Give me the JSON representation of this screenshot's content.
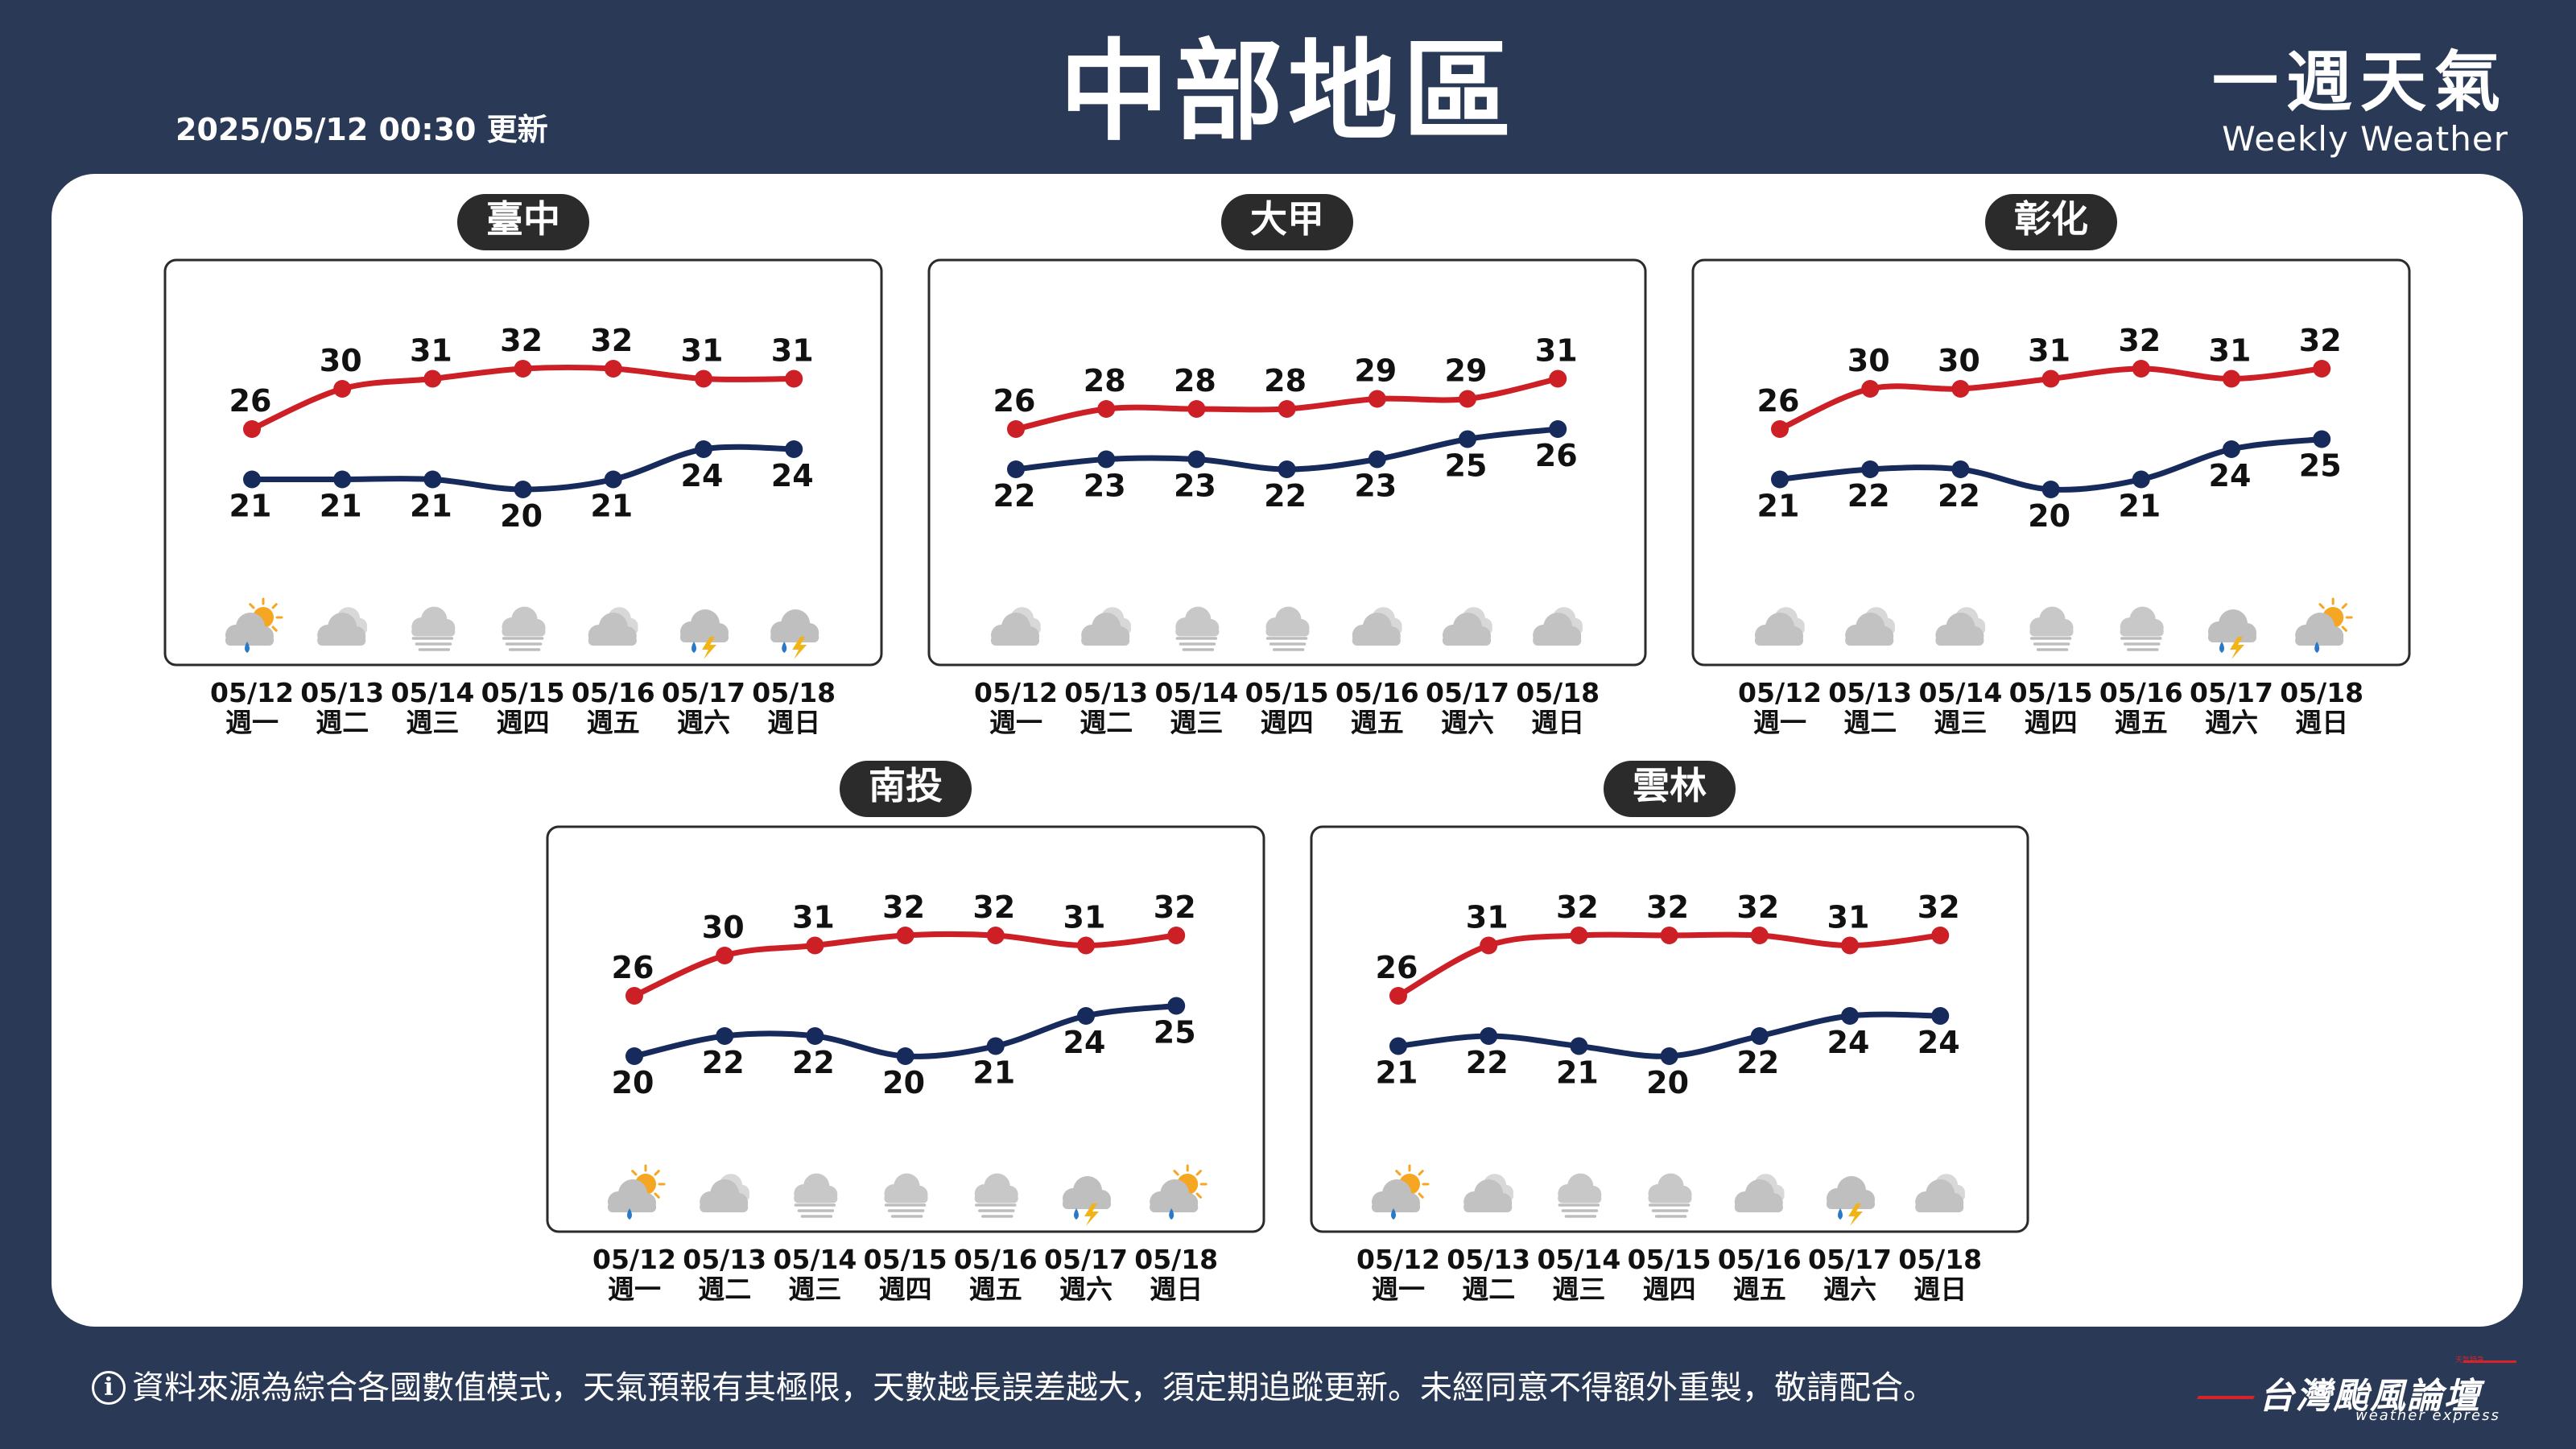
{
  "header": {
    "title": "中部地區",
    "updated": "2025/05/12 00:30 更新",
    "brand_zh": "一週天氣",
    "brand_en": "Weekly Weather"
  },
  "footer": {
    "info_icon": "info-icon",
    "text": "資料來源為綜合各國數值模式，天氣預報有其極限，天數越長誤差越大，須定期追蹤更新。未經同意不得額外重製，敬請配合。",
    "logo_zh": "台灣颱風論壇",
    "logo_en": "weather express",
    "logo_tag": "天氣特急"
  },
  "colors": {
    "background": "#2a3a56",
    "card": "#ffffff",
    "high_line": "#cc1f26",
    "low_line": "#172a5c",
    "region_pill": "#2b2b2b",
    "lightning": "#f2b316",
    "rain": "#2a78c7",
    "sun": "#f5a623"
  },
  "chart_data": [
    {
      "type": "line",
      "title": "臺中",
      "x": [
        "05/12",
        "05/13",
        "05/14",
        "05/15",
        "05/16",
        "05/17",
        "05/18"
      ],
      "weekday": [
        "週一",
        "週二",
        "週三",
        "週四",
        "週五",
        "週六",
        "週日"
      ],
      "series": [
        {
          "role": "high",
          "values": [
            26,
            30,
            31,
            32,
            32,
            31,
            31
          ]
        },
        {
          "role": "low",
          "values": [
            21,
            21,
            21,
            20,
            21,
            24,
            24
          ]
        }
      ],
      "icons": [
        "partly-sunny-rain-icon",
        "cloudy-icon",
        "fog-icon",
        "fog-icon",
        "cloudy-icon",
        "thunderstorm-icon",
        "thunderstorm-icon"
      ]
    },
    {
      "type": "line",
      "title": "大甲",
      "x": [
        "05/12",
        "05/13",
        "05/14",
        "05/15",
        "05/16",
        "05/17",
        "05/18"
      ],
      "weekday": [
        "週一",
        "週二",
        "週三",
        "週四",
        "週五",
        "週六",
        "週日"
      ],
      "series": [
        {
          "role": "high",
          "values": [
            26,
            28,
            28,
            28,
            29,
            29,
            31
          ]
        },
        {
          "role": "low",
          "values": [
            22,
            23,
            23,
            22,
            23,
            25,
            26
          ]
        }
      ],
      "icons": [
        "cloudy-icon",
        "cloudy-icon",
        "fog-icon",
        "fog-icon",
        "cloudy-icon",
        "cloudy-icon",
        "cloudy-icon"
      ]
    },
    {
      "type": "line",
      "title": "彰化",
      "x": [
        "05/12",
        "05/13",
        "05/14",
        "05/15",
        "05/16",
        "05/17",
        "05/18"
      ],
      "weekday": [
        "週一",
        "週二",
        "週三",
        "週四",
        "週五",
        "週六",
        "週日"
      ],
      "series": [
        {
          "role": "high",
          "values": [
            26,
            30,
            30,
            31,
            32,
            31,
            32
          ]
        },
        {
          "role": "low",
          "values": [
            21,
            22,
            22,
            20,
            21,
            24,
            25
          ]
        }
      ],
      "icons": [
        "cloudy-icon",
        "cloudy-icon",
        "cloudy-icon",
        "fog-icon",
        "fog-icon",
        "thunderstorm-icon",
        "partly-sunny-rain-icon"
      ]
    },
    {
      "type": "line",
      "title": "南投",
      "x": [
        "05/12",
        "05/13",
        "05/14",
        "05/15",
        "05/16",
        "05/17",
        "05/18"
      ],
      "weekday": [
        "週一",
        "週二",
        "週三",
        "週四",
        "週五",
        "週六",
        "週日"
      ],
      "series": [
        {
          "role": "high",
          "values": [
            26,
            30,
            31,
            32,
            32,
            31,
            32
          ]
        },
        {
          "role": "low",
          "values": [
            20,
            22,
            22,
            20,
            21,
            24,
            25
          ]
        }
      ],
      "icons": [
        "partly-sunny-rain-icon",
        "cloudy-icon",
        "fog-icon",
        "fog-icon",
        "fog-icon",
        "thunderstorm-icon",
        "partly-sunny-rain-icon"
      ]
    },
    {
      "type": "line",
      "title": "雲林",
      "x": [
        "05/12",
        "05/13",
        "05/14",
        "05/15",
        "05/16",
        "05/17",
        "05/18"
      ],
      "weekday": [
        "週一",
        "週二",
        "週三",
        "週四",
        "週五",
        "週六",
        "週日"
      ],
      "series": [
        {
          "role": "high",
          "values": [
            26,
            31,
            32,
            32,
            32,
            31,
            32
          ]
        },
        {
          "role": "low",
          "values": [
            21,
            22,
            21,
            20,
            22,
            24,
            24
          ]
        }
      ],
      "icons": [
        "partly-sunny-rain-icon",
        "cloudy-icon",
        "fog-icon",
        "fog-icon",
        "cloudy-icon",
        "thunderstorm-icon",
        "cloudy-icon"
      ]
    }
  ]
}
